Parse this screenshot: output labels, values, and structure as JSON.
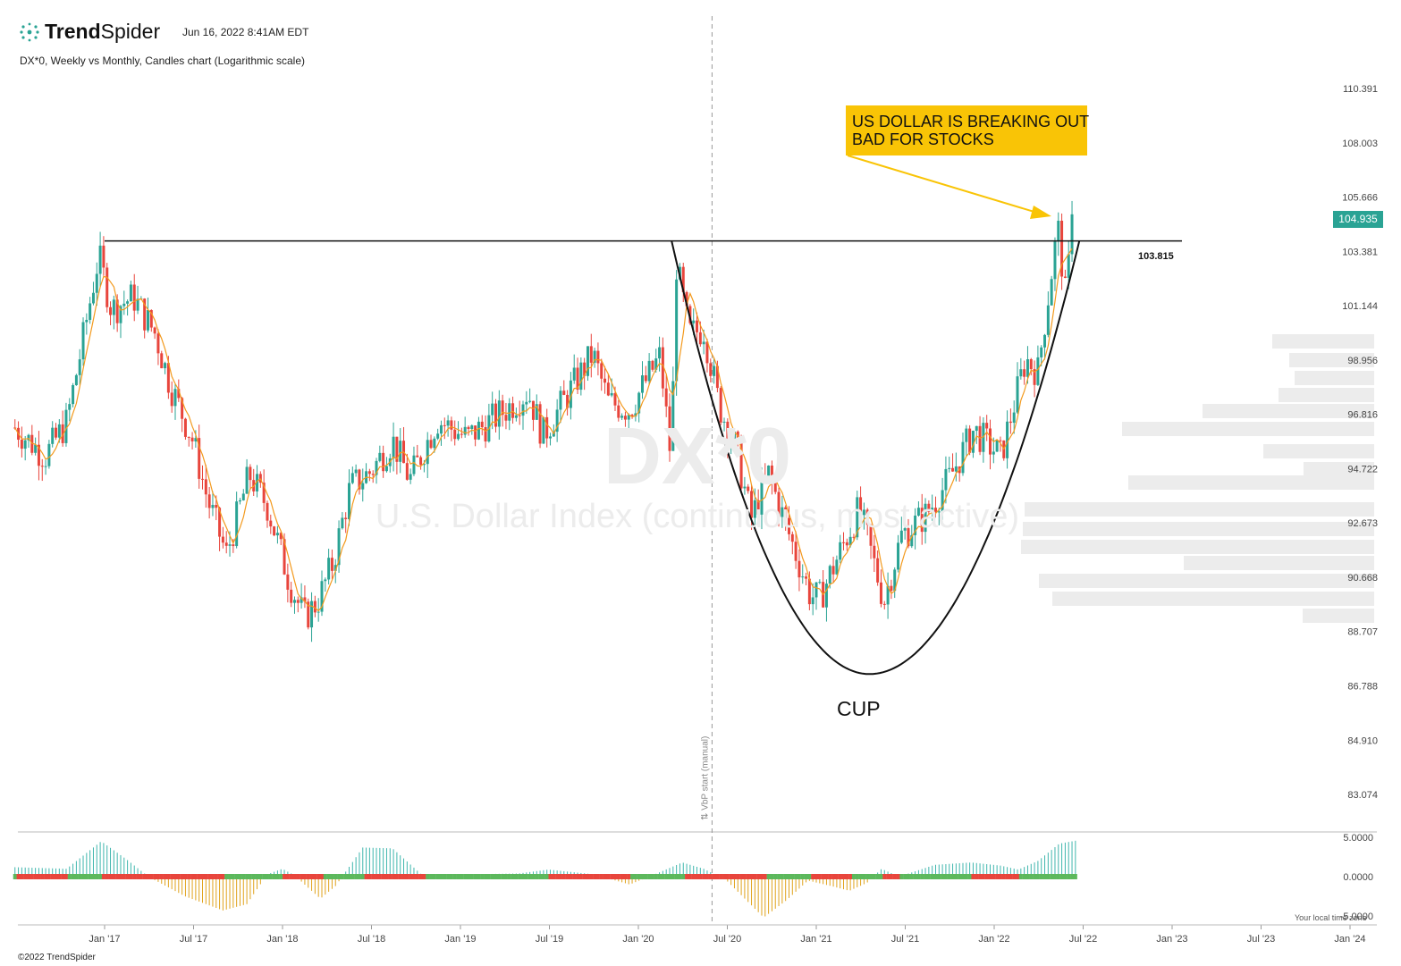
{
  "header": {
    "brand_bold": "Trend",
    "brand_light": "Spider",
    "date": "Jun 16, 2022 8:41AM EDT",
    "subtitle": "DX*0, Weekly vs Monthly, Candles chart (Logarithmic scale)"
  },
  "footer": {
    "copyright": "©2022 TrendSpider",
    "timezone_note": "Your local time zone"
  },
  "watermark": {
    "symbol": "DX*0",
    "name": "U.S. Dollar Index (continuous, most active)"
  },
  "annotations": {
    "callout_line1": "US DOLLAR IS BREAKING OUT",
    "callout_line2": "BAD FOR STOCKS",
    "pattern_label": "CUP",
    "resistance_label": "103.815",
    "vbp_label": "⇅ VbP start (manual)",
    "last_price": "104.935"
  },
  "colors": {
    "up": "#2aa394",
    "down": "#e8453c",
    "ma": "#f39a1e",
    "callout": "#f9c406",
    "osc_pos": "#3fb6ad",
    "osc_neg": "#e0a31c",
    "state_green": "#5cb85c",
    "state_red": "#e8453c",
    "vbp": "#ececec"
  },
  "chart_data": {
    "type": "candlestick",
    "symbol": "DX*0",
    "scale": "log",
    "y_ticks": [
      "110.391",
      "108.003",
      "105.666",
      "103.381",
      "101.144",
      "98.956",
      "96.816",
      "94.722",
      "92.673",
      "90.668",
      "88.707",
      "86.788",
      "84.910",
      "83.074"
    ],
    "x_ticks": [
      "Jan '17",
      "Jul '17",
      "Jan '18",
      "Jul '18",
      "Jan '19",
      "Jul '19",
      "Jan '20",
      "Jul '20",
      "Jan '21",
      "Jul '21",
      "Jan '22",
      "Jul '22",
      "Jan '23",
      "Jul '23",
      "Jan '24"
    ],
    "ylim": [
      81.5,
      112.0
    ],
    "resistance": 103.815,
    "last_close": 104.935,
    "price_path": [
      [
        "2016-07-01",
        96.3
      ],
      [
        "2016-09-01",
        95.2
      ],
      [
        "2016-10-15",
        96.5
      ],
      [
        "2016-11-10",
        99.0
      ],
      [
        "2016-12-20",
        103.2
      ],
      [
        "2017-01-15",
        101.0
      ],
      [
        "2017-03-01",
        101.5
      ],
      [
        "2017-04-15",
        100.0
      ],
      [
        "2017-05-15",
        98.0
      ],
      [
        "2017-07-01",
        95.8
      ],
      [
        "2017-08-01",
        93.5
      ],
      [
        "2017-09-08",
        91.5
      ],
      [
        "2017-10-25",
        94.5
      ],
      [
        "2017-12-01",
        93.3
      ],
      [
        "2018-01-15",
        90.5
      ],
      [
        "2018-02-15",
        89.2
      ],
      [
        "2018-03-15",
        89.8
      ],
      [
        "2018-04-15",
        91.2
      ],
      [
        "2018-05-20",
        94.0
      ],
      [
        "2018-07-01",
        94.6
      ],
      [
        "2018-08-15",
        95.8
      ],
      [
        "2018-09-20",
        94.3
      ],
      [
        "2018-11-15",
        96.6
      ],
      [
        "2019-01-15",
        95.9
      ],
      [
        "2019-03-15",
        96.7
      ],
      [
        "2019-05-20",
        97.7
      ],
      [
        "2019-06-20",
        96.0
      ],
      [
        "2019-09-30",
        99.2
      ],
      [
        "2019-11-01",
        97.3
      ],
      [
        "2019-12-15",
        97.0
      ],
      [
        "2020-02-15",
        99.1
      ],
      [
        "2020-03-09",
        95.0
      ],
      [
        "2020-03-20",
        102.8
      ],
      [
        "2020-04-15",
        100.0
      ],
      [
        "2020-05-15",
        100.2
      ],
      [
        "2020-06-15",
        97.2
      ],
      [
        "2020-07-20",
        95.5
      ],
      [
        "2020-08-20",
        92.8
      ],
      [
        "2020-09-25",
        94.5
      ],
      [
        "2020-11-01",
        92.5
      ],
      [
        "2020-12-20",
        90.0
      ],
      [
        "2021-01-08",
        89.9
      ],
      [
        "2021-03-30",
        93.2
      ],
      [
        "2021-05-20",
        89.8
      ],
      [
        "2021-06-25",
        92.2
      ],
      [
        "2021-08-15",
        93.0
      ],
      [
        "2021-09-30",
        94.3
      ],
      [
        "2021-11-20",
        96.2
      ],
      [
        "2022-01-15",
        95.2
      ],
      [
        "2022-03-07",
        99.0
      ],
      [
        "2022-04-01",
        98.5
      ],
      [
        "2022-05-12",
        104.4
      ],
      [
        "2022-05-27",
        101.6
      ],
      [
        "2022-06-16",
        104.9
      ]
    ],
    "cup": {
      "start": [
        "2020-03-10",
        103.815
      ],
      "bottom": [
        "2021-04-20",
        87.2
      ],
      "end": [
        "2022-06-25",
        103.815
      ]
    },
    "volume_profile_note": "horizontal volume-by-price bars anchored at VbP start (manual) Mar 2020",
    "oscillator": {
      "y_ticks": [
        "5.0000",
        "0.0000",
        "-5.0000"
      ],
      "path": [
        [
          "2016-07-01",
          1.2
        ],
        [
          "2016-10-15",
          1.0
        ],
        [
          "2016-12-25",
          4.5
        ],
        [
          "2017-02-15",
          2.2
        ],
        [
          "2017-04-01",
          0.0
        ],
        [
          "2017-06-15",
          -2.5
        ],
        [
          "2017-09-01",
          -4.3
        ],
        [
          "2017-10-20",
          -3.5
        ],
        [
          "2017-12-01",
          0.3
        ],
        [
          "2018-01-01",
          1.0
        ],
        [
          "2018-01-25",
          0.2
        ],
        [
          "2018-03-20",
          -2.8
        ],
        [
          "2018-04-20",
          -1.2
        ],
        [
          "2018-06-15",
          3.7
        ],
        [
          "2018-08-15",
          3.6
        ],
        [
          "2018-10-15",
          0.2
        ],
        [
          "2019-05-01",
          0.4
        ],
        [
          "2019-07-01",
          0.9
        ],
        [
          "2019-10-01",
          0.3
        ],
        [
          "2019-12-15",
          -1.0
        ],
        [
          "2020-02-01",
          0.2
        ],
        [
          "2020-04-01",
          1.8
        ],
        [
          "2020-05-15",
          1.0
        ],
        [
          "2020-07-01",
          -0.5
        ],
        [
          "2020-09-15",
          -5.2
        ],
        [
          "2020-11-01",
          -3.0
        ],
        [
          "2020-12-15",
          -0.5
        ],
        [
          "2021-02-01",
          -1.2
        ],
        [
          "2021-03-10",
          -1.8
        ],
        [
          "2021-04-15",
          -0.8
        ],
        [
          "2021-05-15",
          1.0
        ],
        [
          "2021-06-20",
          0.0
        ],
        [
          "2021-09-01",
          1.5
        ],
        [
          "2021-11-15",
          1.8
        ],
        [
          "2022-01-15",
          1.4
        ],
        [
          "2022-02-20",
          0.9
        ],
        [
          "2022-04-01",
          2.0
        ],
        [
          "2022-05-15",
          4.2
        ],
        [
          "2022-06-20",
          4.6
        ]
      ]
    }
  }
}
